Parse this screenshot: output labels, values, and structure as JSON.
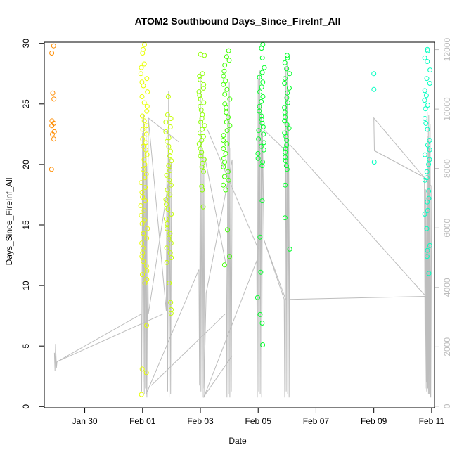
{
  "chart_data": {
    "type": "scatter",
    "title": "ATOM2 Southbound Days_Since_FireInf_All",
    "xlabel": "Date",
    "ylabel": "Days_Since_FireInf_All",
    "x_ticks": [
      "Jan 30",
      "Feb 01",
      "Feb 03",
      "Feb 05",
      "Feb 07",
      "Feb 09",
      "Feb 11"
    ],
    "x_tick_days": [
      0,
      2,
      4,
      6,
      8,
      10,
      12
    ],
    "xlim_days": [
      -1.4,
      12.1
    ],
    "ylim": [
      -0.1,
      30.1
    ],
    "y_ticks": [
      0,
      5,
      10,
      15,
      20,
      25,
      30
    ],
    "y2lim": [
      -50,
      12250
    ],
    "y2_ticks": [
      0,
      2000,
      4000,
      6000,
      8000,
      10000,
      12000
    ],
    "grid": false,
    "colors": {
      "g0": "#ff8c00",
      "g1": "#e8ff00",
      "g2": "#c6ff00",
      "g3": "#8cff00",
      "g4": "#3fff00",
      "g5": "#00ff2a",
      "g6": "#00ffc0",
      "line": "#bdbdbd",
      "axis": "#000000",
      "axis2": "#bdbdbd"
    },
    "groups": [
      {
        "name": "g0",
        "x": -1.1,
        "spread": 0.05,
        "y": [
          29.8,
          29.2,
          25.9,
          25.4,
          23.6,
          23.4,
          23.2,
          22.7,
          22.5,
          22.1,
          19.6
        ]
      },
      {
        "name": "g1",
        "x": 2.05,
        "spread": 0.12,
        "y": [
          29.9,
          29.5,
          29.2,
          28.3,
          28.0,
          27.5,
          27.1,
          26.8,
          26.5,
          26.0,
          25.6,
          25.1,
          24.8,
          24.4,
          24.0,
          23.6,
          23.2,
          22.9,
          22.5,
          22.1,
          21.8,
          21.5,
          21.2,
          20.8,
          20.4,
          20.0,
          19.6,
          19.2,
          18.9,
          18.5,
          18.1,
          17.7,
          17.3,
          17.0,
          16.6,
          16.2,
          15.8,
          15.4,
          15.1,
          14.7,
          14.3,
          13.9,
          13.5,
          13.1,
          12.7,
          12.4,
          12.0,
          11.6,
          11.2,
          10.9,
          10.5,
          10.2,
          6.7,
          3.1,
          2.8,
          1.0
        ]
      },
      {
        "name": "g2",
        "x": 2.9,
        "spread": 0.1,
        "y": [
          25.6,
          24.1,
          23.8,
          23.5,
          23.1,
          22.7,
          22.2,
          21.9,
          21.5,
          21.1,
          20.7,
          20.3,
          19.9,
          19.5,
          19.1,
          18.7,
          18.3,
          17.9,
          17.5,
          17.1,
          16.7,
          16.3,
          15.9,
          15.5,
          15.1,
          14.7,
          14.3,
          13.9,
          13.5,
          13.1,
          12.7,
          12.3,
          11.9,
          10.2,
          8.6,
          8.0,
          7.7
        ]
      },
      {
        "name": "g3",
        "x": 4.05,
        "spread": 0.1,
        "y": [
          29.1,
          29.0,
          27.5,
          27.3,
          27.0,
          26.6,
          26.3,
          26.0,
          25.7,
          25.4,
          25.1,
          24.8,
          24.5,
          24.1,
          23.8,
          23.5,
          23.2,
          22.9,
          22.6,
          22.3,
          22.0,
          21.7,
          21.3,
          21.0,
          20.7,
          20.4,
          20.1,
          19.8,
          19.4,
          18.2,
          17.9,
          16.5
        ]
      },
      {
        "name": "g4",
        "x": 4.9,
        "spread": 0.12,
        "y": [
          29.4,
          28.9,
          28.6,
          28.2,
          27.7,
          27.3,
          26.9,
          26.6,
          26.2,
          25.8,
          25.4,
          25.0,
          24.7,
          24.3,
          23.9,
          23.5,
          23.2,
          22.8,
          22.4,
          22.0,
          21.7,
          21.3,
          20.9,
          20.5,
          20.2,
          19.8,
          19.4,
          19.0,
          18.7,
          18.3,
          17.9,
          14.6,
          12.4,
          11.7
        ]
      },
      {
        "name": "g5",
        "x": 6.1,
        "spread": 0.12,
        "y": [
          29.9,
          29.6,
          28.8,
          28.0,
          27.6,
          27.2,
          26.8,
          26.4,
          26.0,
          25.6,
          25.2,
          24.8,
          24.4,
          24.0,
          23.7,
          23.4,
          23.1,
          22.8,
          22.5,
          22.1,
          21.8,
          21.5,
          21.2,
          20.9,
          20.5,
          20.2,
          19.9,
          17.0,
          14.0,
          11.1,
          9.0,
          7.6,
          6.9,
          5.1
        ]
      },
      {
        "name": "g5",
        "x": 7.0,
        "spread": 0.1,
        "y": [
          29.0,
          28.8,
          28.4,
          27.9,
          27.5,
          27.1,
          26.7,
          26.3,
          25.9,
          25.5,
          25.1,
          24.7,
          24.3,
          23.9,
          23.6,
          23.3,
          23.0,
          22.6,
          22.3,
          22.0,
          21.6,
          21.3,
          21.0,
          20.6,
          20.3,
          19.9,
          19.6,
          18.3,
          15.6,
          13.0
        ]
      },
      {
        "name": "g6",
        "x": 10.0,
        "spread": 0.02,
        "y": [
          27.5,
          26.2,
          20.2
        ]
      },
      {
        "name": "g6",
        "x": 11.85,
        "spread": 0.1,
        "y": [
          29.5,
          29.4,
          28.8,
          28.5,
          27.8,
          27.1,
          26.7,
          26.1,
          25.7,
          25.3,
          24.9,
          24.6,
          23.8,
          23.4,
          22.9,
          22.0,
          21.6,
          21.2,
          20.8,
          20.4,
          20.0,
          19.4,
          18.9,
          18.7,
          17.8,
          17.2,
          16.9,
          16.2,
          15.9,
          14.7,
          13.3,
          12.9,
          12.4,
          11.0
        ]
      }
    ],
    "line_series": {
      "name": "",
      "x": [
        -1.05,
        -1.03,
        -1.01,
        -0.98,
        -0.96,
        1.95,
        1.97,
        2.0,
        2.02,
        2.04,
        2.06,
        2.08,
        2.1,
        2.12,
        2.15,
        2.2,
        2.82,
        2.85,
        2.87,
        2.9,
        2.92,
        2.95,
        2.97,
        3.0,
        2.2,
        2.15,
        2.12,
        3.95,
        3.97,
        4.0,
        4.02,
        4.05,
        4.07,
        4.1,
        4.12,
        4.15,
        4.9,
        4.92,
        4.95,
        4.97,
        5.0,
        5.02,
        5.05,
        5.07,
        5.1,
        4.2,
        4.15,
        4.12,
        5.95,
        5.97,
        6.0,
        6.02,
        6.05,
        6.07,
        6.1,
        6.12,
        6.15,
        6.2,
        6.9,
        6.92,
        6.95,
        6.97,
        7.0,
        7.02,
        7.05,
        7.07,
        7.1,
        11.8,
        11.82,
        11.85,
        11.87,
        11.9,
        11.92,
        11.95,
        11.97,
        12.0,
        10.0,
        10.02,
        11.75,
        11.78,
        11.8,
        11.83,
        11.86,
        11.89,
        11.92,
        11.95
      ],
      "y": [
        1800,
        1200,
        2100,
        1300,
        1500,
        3100,
        500,
        9200,
        800,
        9800,
        400,
        8800,
        600,
        9500,
        300,
        9700,
        3200,
        9400,
        500,
        10600,
        300,
        8300,
        400,
        8200,
        3100,
        8100,
        400,
        4600,
        700,
        11200,
        500,
        9100,
        300,
        8600,
        600,
        8400,
        4700,
        300,
        9800,
        400,
        10900,
        300,
        8700,
        500,
        8300,
        3800,
        1700,
        300,
        4900,
        300,
        11000,
        500,
        11300,
        400,
        10200,
        300,
        9200,
        5600,
        3600,
        300,
        11400,
        500,
        11600,
        400,
        9500,
        300,
        8800,
        3700,
        800,
        9900,
        600,
        9800,
        400,
        9500,
        300,
        7400,
        9700,
        8600,
        7700,
        600,
        7300,
        500,
        9100,
        400,
        8700,
        300
      ],
      "yaxis": "right"
    },
    "y2_line_bridges": [
      {
        "x1": -0.96,
        "y1": 1500,
        "x2": 2.7,
        "y2": 3100
      },
      {
        "x1": 2.2,
        "y1": 9700,
        "x2": 3.25,
        "y2": 8900
      },
      {
        "x1": 2.3,
        "y1": 700,
        "x2": 4.85,
        "y2": 3100
      },
      {
        "x1": 4.1,
        "y1": 300,
        "x2": 5.1,
        "y2": 1700
      },
      {
        "x1": 4.25,
        "y1": 9300,
        "x2": 6.0,
        "y2": 5300
      },
      {
        "x1": 6.2,
        "y1": 5600,
        "x2": 6.95,
        "y2": 3600
      },
      {
        "x1": 6.1,
        "y1": 9400,
        "x2": 6.95,
        "y2": 8600
      },
      {
        "x1": 7.1,
        "y1": 3600,
        "x2": 11.8,
        "y2": 3700
      },
      {
        "x1": 10.02,
        "y1": 8600,
        "x2": 11.75,
        "y2": 7700
      }
    ]
  }
}
